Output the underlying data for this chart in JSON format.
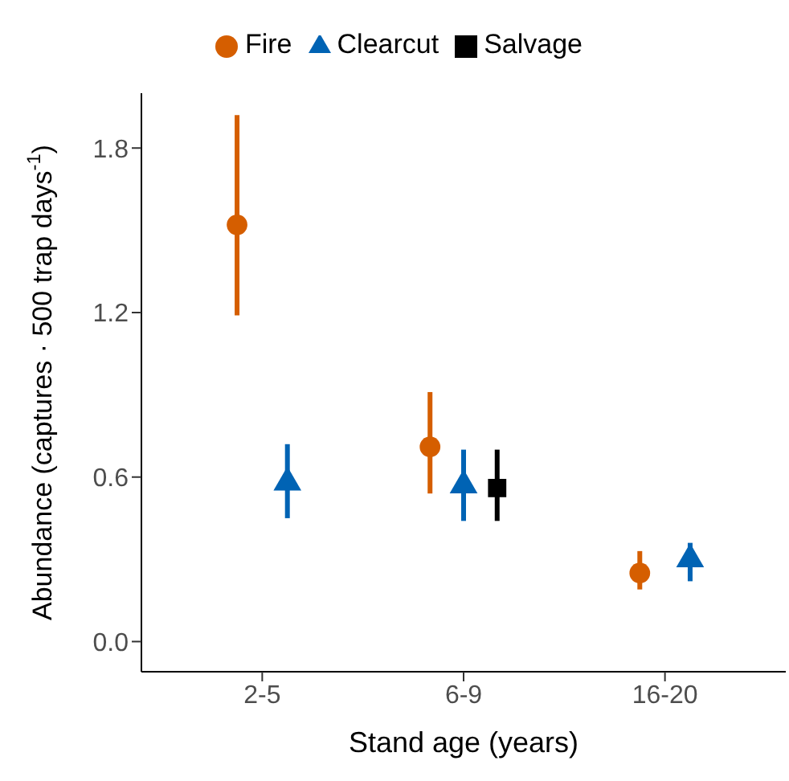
{
  "chart_data": {
    "type": "scatter",
    "xlabel": "Stand age (years)",
    "ylabel": "Abundance (captures · 500 trap days$^{-1}$)",
    "categories": [
      "2-5",
      "6-9",
      "16-20"
    ],
    "series": [
      {
        "name": "Fire",
        "color": "#d55e00",
        "marker": "circle",
        "values": [
          1.52,
          0.71,
          0.25
        ],
        "errors": [
          [
            1.19,
            1.92
          ],
          [
            0.54,
            0.91
          ],
          [
            0.19,
            0.33
          ]
        ]
      },
      {
        "name": "Clearcut",
        "color": "#0063b4",
        "marker": "triangle",
        "values": [
          0.58,
          0.57,
          0.3
        ],
        "errors": [
          [
            0.45,
            0.72
          ],
          [
            0.44,
            0.7
          ],
          [
            0.22,
            0.36
          ]
        ]
      },
      {
        "name": "Salvage",
        "color": "#000000",
        "marker": "square",
        "values": [
          null,
          0.56,
          null
        ],
        "errors": [
          null,
          [
            0.44,
            0.7
          ],
          null
        ]
      }
    ],
    "ylim": [
      -0.11,
      2.0
    ],
    "yticks": [
      {
        "value": 0,
        "label": "0.0"
      },
      0.6,
      1.2,
      1.8
    ],
    "legend": "top"
  }
}
